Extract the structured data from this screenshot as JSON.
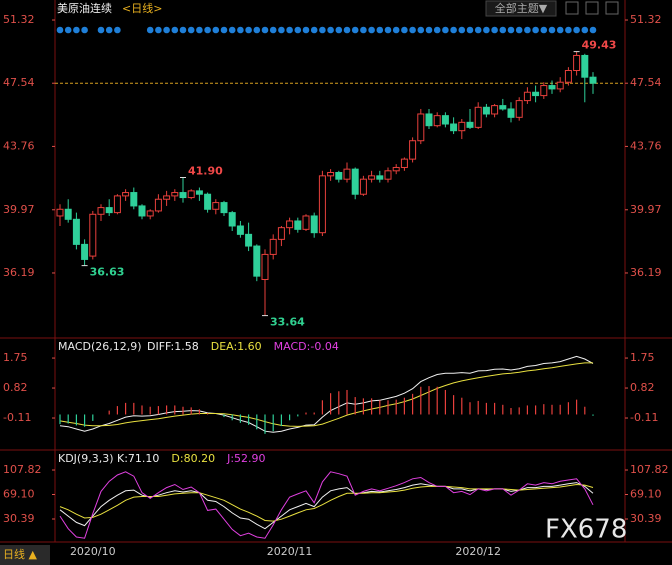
{
  "chart_data": [
    {
      "type": "candlestick",
      "title": "美原油连续",
      "subtitle": "<日线>",
      "categories": [
        null,
        null,
        null,
        null,
        "2020/10",
        null,
        null,
        null,
        null,
        null,
        null,
        null,
        null,
        null,
        null,
        null,
        null,
        null,
        null,
        null,
        null,
        null,
        null,
        null,
        null,
        null,
        null,
        null,
        "2020/11",
        null,
        null,
        null,
        null,
        null,
        null,
        null,
        null,
        null,
        null,
        null,
        null,
        null,
        null,
        null,
        null,
        null,
        null,
        null,
        null,
        null,
        null,
        "2020/12",
        null,
        null,
        null,
        null,
        null,
        null,
        null,
        null,
        null,
        null,
        null,
        null,
        null,
        null
      ],
      "open": [
        39.6,
        40.0,
        39.4,
        37.9,
        37.2,
        39.7,
        40.1,
        39.8,
        40.8,
        41.0,
        40.2,
        39.6,
        39.9,
        40.6,
        40.8,
        41.0,
        40.7,
        41.1,
        40.9,
        40.0,
        40.4,
        39.8,
        39.0,
        38.5,
        37.8,
        35.8,
        37.3,
        38.2,
        38.9,
        39.3,
        38.8,
        39.6,
        38.6,
        42.0,
        42.2,
        41.8,
        42.4,
        40.9,
        41.8,
        42.0,
        41.8,
        42.3,
        42.5,
        43.0,
        44.1,
        45.7,
        45.0,
        45.6,
        45.1,
        44.7,
        45.2,
        44.9,
        46.1,
        45.7,
        46.2,
        46.0,
        45.5,
        46.5,
        47.0,
        46.8,
        47.4,
        47.2,
        47.6,
        48.3,
        49.2,
        47.9
      ],
      "high": [
        40.3,
        40.6,
        39.8,
        38.2,
        39.9,
        40.3,
        40.6,
        40.9,
        41.2,
        41.3,
        40.3,
        40.0,
        40.9,
        41.1,
        41.2,
        41.9,
        41.2,
        41.3,
        41.0,
        40.6,
        40.5,
        39.9,
        39.3,
        39.2,
        37.9,
        37.6,
        38.5,
        39.0,
        39.5,
        39.5,
        39.7,
        39.8,
        42.3,
        42.4,
        42.3,
        42.8,
        42.5,
        42.0,
        42.3,
        42.3,
        42.5,
        42.7,
        43.1,
        44.3,
        46.0,
        46.0,
        45.8,
        45.8,
        45.5,
        45.4,
        46.0,
        46.4,
        46.3,
        46.3,
        46.6,
        46.4,
        46.7,
        47.3,
        47.4,
        47.6,
        47.7,
        47.9,
        48.5,
        49.43,
        49.3,
        48.2
      ],
      "low": [
        39.0,
        39.2,
        37.6,
        36.63,
        37.0,
        39.3,
        39.6,
        39.7,
        40.5,
        40.0,
        39.4,
        39.4,
        39.8,
        40.2,
        40.5,
        40.4,
        40.6,
        40.5,
        39.8,
        39.7,
        39.6,
        38.7,
        38.3,
        37.5,
        35.7,
        33.64,
        37.0,
        37.8,
        38.5,
        38.6,
        38.7,
        38.3,
        38.4,
        41.7,
        41.6,
        41.6,
        40.6,
        40.8,
        41.6,
        41.6,
        41.6,
        42.1,
        42.3,
        42.8,
        43.9,
        44.8,
        44.9,
        44.9,
        44.5,
        44.2,
        44.8,
        44.8,
        45.5,
        45.5,
        45.9,
        45.2,
        45.3,
        46.3,
        46.4,
        46.6,
        46.9,
        47.0,
        47.4,
        48.0,
        46.4,
        46.9
      ],
      "close": [
        40.0,
        39.4,
        37.9,
        37.0,
        39.7,
        40.1,
        39.8,
        40.8,
        41.0,
        40.2,
        39.6,
        39.9,
        40.6,
        40.8,
        41.0,
        40.7,
        41.1,
        40.9,
        40.0,
        40.4,
        39.8,
        39.0,
        38.5,
        37.8,
        36.0,
        37.3,
        38.2,
        38.9,
        39.3,
        38.8,
        39.6,
        38.6,
        42.0,
        42.2,
        41.8,
        42.4,
        40.9,
        41.8,
        42.0,
        41.8,
        42.3,
        42.5,
        43.0,
        44.1,
        45.7,
        45.0,
        45.6,
        45.1,
        44.7,
        45.2,
        44.9,
        46.1,
        45.7,
        46.2,
        46.0,
        45.5,
        46.5,
        47.0,
        46.8,
        47.4,
        47.2,
        47.6,
        48.3,
        49.2,
        47.9,
        47.54
      ],
      "up_color": "#e8403c",
      "down_color": "#2fd09a",
      "ylim": [
        32.42,
        51.68
      ],
      "yticks": [
        51.32,
        47.54,
        43.76,
        39.97,
        36.19
      ],
      "annotations": [
        {
          "index": 63,
          "value": 49.43
        },
        {
          "index": 15,
          "value": 41.9,
          "label": "41.90"
        },
        {
          "index": 3,
          "value": 36.63
        },
        {
          "index": 25,
          "value": 33.64
        }
      ]
    },
    {
      "type": "macd",
      "title": "MACD(26,12,9)",
      "ylim": [
        -1.04,
        2.31
      ],
      "yticks": [
        1.75,
        0.82,
        -0.11
      ],
      "series": [
        {
          "name": "DIFF:1.58",
          "color": "#f0f0f0",
          "kind": "line",
          "values": [
            -0.35,
            -0.38,
            -0.45,
            -0.52,
            -0.45,
            -0.35,
            -0.28,
            -0.18,
            -0.08,
            -0.04,
            -0.05,
            -0.04,
            0.0,
            0.05,
            0.09,
            0.1,
            0.12,
            0.11,
            0.05,
            0.03,
            -0.02,
            -0.1,
            -0.18,
            -0.25,
            -0.38,
            -0.52,
            -0.55,
            -0.52,
            -0.45,
            -0.4,
            -0.33,
            -0.32,
            -0.08,
            0.12,
            0.24,
            0.36,
            0.32,
            0.36,
            0.42,
            0.44,
            0.5,
            0.56,
            0.66,
            0.8,
            1.02,
            1.14,
            1.24,
            1.28,
            1.28,
            1.3,
            1.28,
            1.35,
            1.36,
            1.4,
            1.41,
            1.38,
            1.42,
            1.49,
            1.52,
            1.58,
            1.6,
            1.64,
            1.72,
            1.8,
            1.72,
            1.58
          ]
        },
        {
          "name": "DEA:1.60",
          "color": "#e8e040",
          "kind": "line",
          "values": [
            -0.2,
            -0.24,
            -0.28,
            -0.33,
            -0.35,
            -0.35,
            -0.34,
            -0.31,
            -0.26,
            -0.22,
            -0.19,
            -0.16,
            -0.13,
            -0.09,
            -0.05,
            -0.02,
            0.01,
            0.03,
            0.03,
            0.03,
            0.02,
            -0.01,
            -0.05,
            -0.09,
            -0.15,
            -0.22,
            -0.29,
            -0.34,
            -0.36,
            -0.37,
            -0.36,
            -0.35,
            -0.3,
            -0.21,
            -0.12,
            -0.02,
            0.05,
            0.11,
            0.17,
            0.22,
            0.28,
            0.33,
            0.4,
            0.48,
            0.59,
            0.7,
            0.81,
            0.9,
            0.98,
            1.04,
            1.09,
            1.14,
            1.18,
            1.22,
            1.26,
            1.28,
            1.31,
            1.35,
            1.38,
            1.42,
            1.45,
            1.49,
            1.53,
            1.57,
            1.6,
            1.6
          ]
        },
        {
          "name": "MACD:-0.04",
          "color": "#e040e0",
          "kind": "bar",
          "up_color": "#e8403c",
          "down_color": "#2fd09a",
          "values": [
            -0.3,
            -0.28,
            -0.34,
            -0.38,
            -0.2,
            0.0,
            0.12,
            0.26,
            0.36,
            0.36,
            0.28,
            0.24,
            0.26,
            0.28,
            0.28,
            0.24,
            0.22,
            0.16,
            0.04,
            0.0,
            -0.08,
            -0.18,
            -0.26,
            -0.32,
            -0.46,
            -0.6,
            -0.52,
            -0.36,
            -0.18,
            -0.06,
            0.06,
            0.06,
            0.44,
            0.66,
            0.72,
            0.76,
            0.54,
            0.5,
            0.5,
            0.44,
            0.44,
            0.46,
            0.52,
            0.64,
            0.86,
            0.88,
            0.86,
            0.76,
            0.6,
            0.52,
            0.38,
            0.42,
            0.36,
            0.36,
            0.3,
            0.2,
            0.22,
            0.28,
            0.28,
            0.32,
            0.3,
            0.3,
            0.38,
            0.46,
            0.24,
            -0.04
          ]
        }
      ]
    },
    {
      "type": "kdj",
      "title": "KDJ(9,3,3)",
      "ylim": [
        -2.8,
        136.3
      ],
      "yticks": [
        107.82,
        {
          "value": 69.1,
          "label": "69.10"
        },
        30.39
      ],
      "series": [
        {
          "name": "K:71.10",
          "color": "#f0f0f0",
          "kind": "line",
          "values": [
            45,
            35,
            25,
            20,
            35,
            50,
            60,
            68,
            75,
            76,
            68,
            65,
            68,
            72,
            75,
            73,
            75,
            72,
            60,
            58,
            50,
            40,
            32,
            30,
            22,
            15,
            25,
            35,
            45,
            50,
            55,
            50,
            65,
            75,
            78,
            80,
            70,
            72,
            74,
            73,
            75,
            77,
            80,
            84,
            86,
            84,
            82,
            82,
            78,
            78,
            75,
            78,
            77,
            78,
            78,
            74,
            76,
            80,
            80,
            82,
            82,
            84,
            86,
            88,
            82,
            71.1
          ]
        },
        {
          "name": "D:80.20",
          "color": "#e8e040",
          "kind": "line",
          "values": [
            50,
            45,
            38,
            32,
            33,
            38,
            45,
            52,
            60,
            65,
            66,
            66,
            66,
            68,
            70,
            71,
            72,
            72,
            68,
            64,
            60,
            53,
            46,
            41,
            35,
            28,
            27,
            30,
            35,
            40,
            45,
            47,
            53,
            60,
            66,
            71,
            71,
            71,
            72,
            72,
            73,
            74,
            76,
            79,
            81,
            82,
            82,
            82,
            81,
            80,
            78,
            78,
            78,
            78,
            78,
            77,
            76,
            77,
            78,
            79,
            80,
            81,
            83,
            85,
            84,
            80.2
          ]
        },
        {
          "name": "J:52.90",
          "color": "#e040e0",
          "kind": "line",
          "values": [
            35,
            15,
            2,
            0,
            39,
            74,
            90,
            100,
            105,
            98,
            72,
            63,
            72,
            80,
            85,
            77,
            81,
            72,
            44,
            46,
            30,
            14,
            4,
            8,
            2,
            0,
            21,
            45,
            65,
            70,
            75,
            56,
            89,
            105,
            102,
            98,
            68,
            74,
            78,
            75,
            79,
            83,
            88,
            94,
            96,
            88,
            82,
            82,
            72,
            74,
            69,
            78,
            75,
            78,
            78,
            68,
            76,
            86,
            84,
            88,
            86,
            90,
            92,
            94,
            78,
            52.9
          ]
        }
      ]
    }
  ],
  "ui": {
    "theme_button": "全部主题▼",
    "period_button": "日线 ▲",
    "watermark": "FX678"
  }
}
